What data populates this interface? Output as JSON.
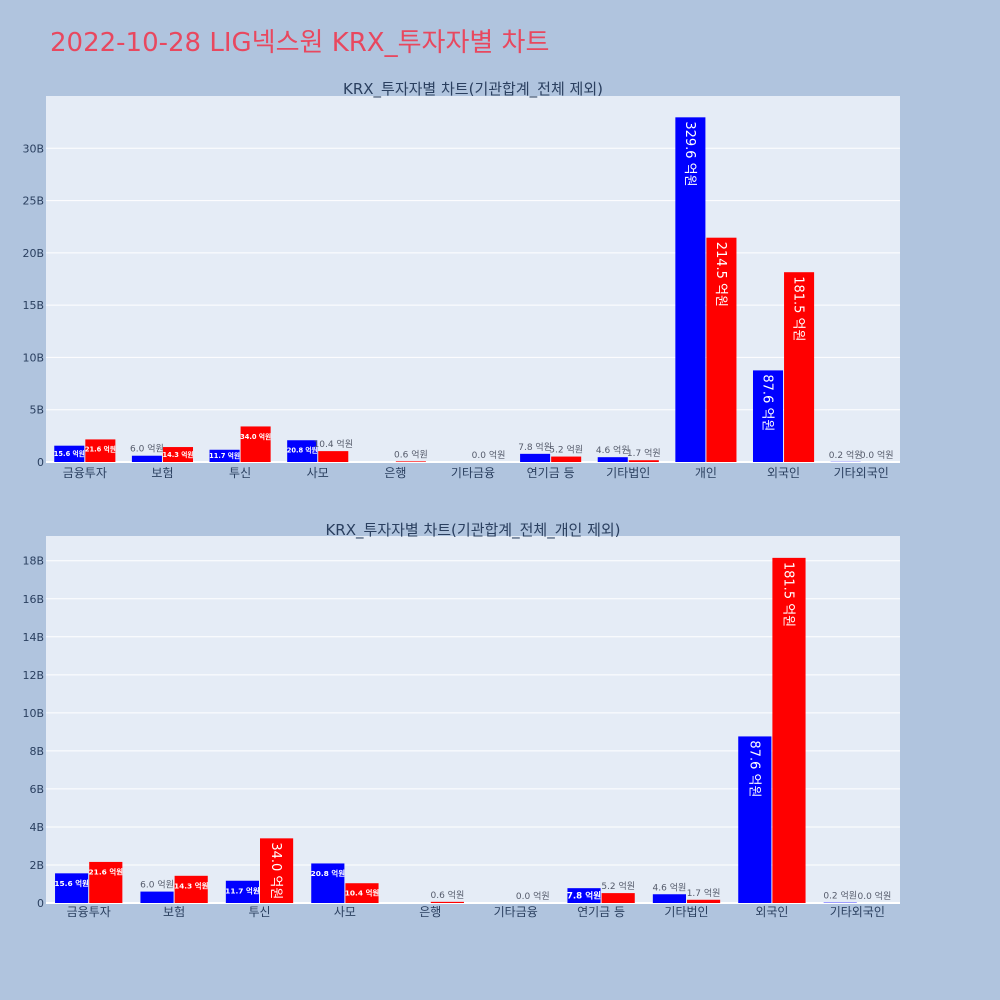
{
  "page": {
    "title": "2022-10-28 LIG넥스원 KRX_투자자별 차트",
    "title_color": "#e8485f",
    "background_color": "#b0c4de"
  },
  "chart_data": [
    {
      "type": "bar",
      "title": "KRX_투자자별 차트(기관합계_전체 제외)",
      "xlabel": "",
      "ylabel": "",
      "categories": [
        "금융투자",
        "보험",
        "투신",
        "사모",
        "은행",
        "기타금융",
        "연기금 등",
        "기타법인",
        "개인",
        "외국인",
        "기타외국인"
      ],
      "ylim": [
        0,
        35000000000
      ],
      "yticks": [
        0,
        5000000000,
        10000000000,
        15000000000,
        20000000000,
        25000000000,
        30000000000
      ],
      "ytick_labels": [
        "0",
        "5B",
        "10B",
        "15B",
        "20B",
        "25B",
        "30B"
      ],
      "grid": true,
      "series": [
        {
          "color": "#0000ff",
          "values": [
            1560000000,
            600000000,
            1170000000,
            2080000000,
            0,
            0,
            780000000,
            460000000,
            32960000000,
            8760000000,
            20000000
          ],
          "labels": [
            "15.6 억원",
            "6.0 억원",
            "11.7 억원",
            "20.8 억원",
            "",
            "",
            "7.8 억원",
            "4.6 억원",
            "329.6 억원",
            "87.6 억원",
            "0.2 억원"
          ]
        },
        {
          "color": "#ff0000",
          "values": [
            2160000000,
            1430000000,
            3400000000,
            1040000000,
            60000000,
            0,
            520000000,
            170000000,
            21450000000,
            18150000000,
            0
          ],
          "labels": [
            "21.6 억원",
            "14.3 억원",
            "34.0 억원",
            "10.4 억원",
            "0.6 억원",
            "0.0 억원",
            "5.2 억원",
            "1.7 억원",
            "214.5 억원",
            "181.5 억원",
            "0.0 억원"
          ]
        }
      ]
    },
    {
      "type": "bar",
      "title": "KRX_투자자별 차트(기관합계_전체_개인 제외)",
      "xlabel": "",
      "ylabel": "",
      "categories": [
        "금융투자",
        "보험",
        "투신",
        "사모",
        "은행",
        "기타금융",
        "연기금 등",
        "기타법인",
        "외국인",
        "기타외국인"
      ],
      "ylim": [
        0,
        19300000000
      ],
      "yticks": [
        0,
        2000000000,
        4000000000,
        6000000000,
        8000000000,
        10000000000,
        12000000000,
        14000000000,
        16000000000,
        18000000000
      ],
      "ytick_labels": [
        "0",
        "2B",
        "4B",
        "6B",
        "8B",
        "10B",
        "12B",
        "14B",
        "16B",
        "18B"
      ],
      "grid": true,
      "series": [
        {
          "color": "#0000ff",
          "values": [
            1560000000,
            600000000,
            1170000000,
            2080000000,
            0,
            0,
            780000000,
            460000000,
            8760000000,
            20000000
          ],
          "labels": [
            "15.6 억원",
            "6.0 억원",
            "11.7 억원",
            "20.8 억원",
            "",
            "",
            "7.8 억원",
            "4.6 억원",
            "87.6 억원",
            "0.2 억원"
          ]
        },
        {
          "color": "#ff0000",
          "values": [
            2160000000,
            1430000000,
            3400000000,
            1040000000,
            60000000,
            0,
            520000000,
            170000000,
            18150000000,
            0
          ],
          "labels": [
            "21.6 억원",
            "14.3 억원",
            "34.0 억원",
            "10.4 억원",
            "0.6 억원",
            "0.0 억원",
            "5.2 억원",
            "1.7 억원",
            "181.5 억원",
            "0.0 억원"
          ]
        }
      ]
    }
  ]
}
